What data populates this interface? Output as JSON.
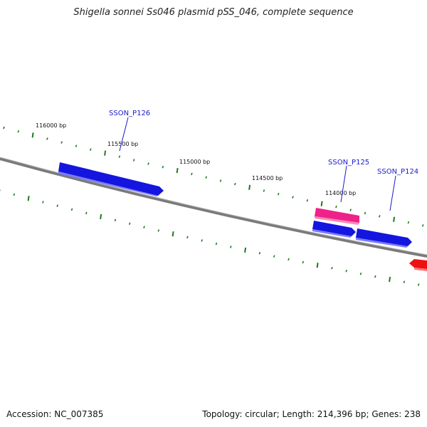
{
  "title": "Shigella sonnei Ss046 plasmid pSS_046, complete sequence",
  "footer": {
    "accession": "Accession: NC_007385",
    "summary": "Topology: circular; Length: 214,396 bp; Genes: 238"
  },
  "colors": {
    "backbone": "#808080",
    "tick": "#1f7a1f",
    "gene_forward": "#1515e0",
    "gene_pink": "#ee2288",
    "gene_red": "#ee1111",
    "label": "#1a1acc"
  },
  "scale_labels": [
    "116000 bp",
    "115500 bp",
    "115000 bp",
    "114500 bp",
    "114000 bp"
  ],
  "genes": [
    {
      "label": "SSON_P126",
      "color": "blue"
    },
    {
      "label": "SSON_P125",
      "color": "pink"
    },
    {
      "label": "SSON_P124",
      "color": "blue"
    }
  ]
}
